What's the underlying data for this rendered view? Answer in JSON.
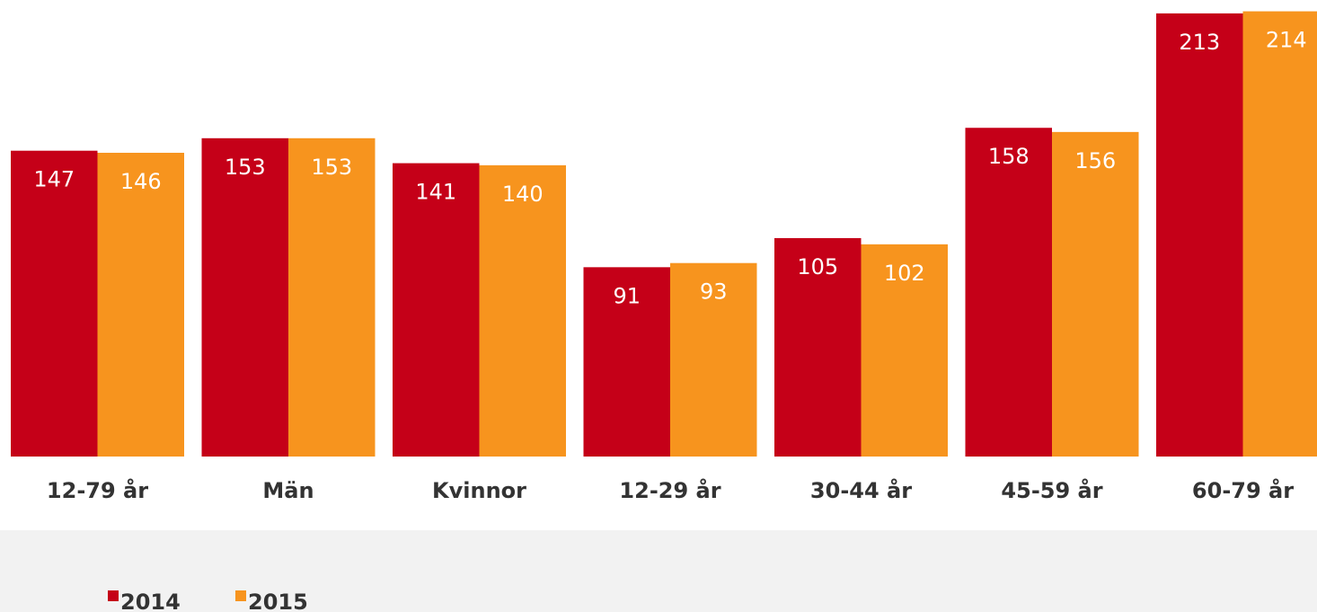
{
  "chart_data": {
    "type": "bar",
    "categories": [
      "12-79 år",
      "Män",
      "Kvinnor",
      "12-29 år",
      "30-44 år",
      "45-59 år",
      "60-79 år"
    ],
    "series": [
      {
        "name": "2014",
        "color": "#c50018",
        "values": [
          147,
          153,
          141,
          91,
          105,
          158,
          213
        ]
      },
      {
        "name": "2015",
        "color": "#f7941e",
        "values": [
          146,
          153,
          140,
          93,
          102,
          156,
          214
        ]
      }
    ]
  }
}
